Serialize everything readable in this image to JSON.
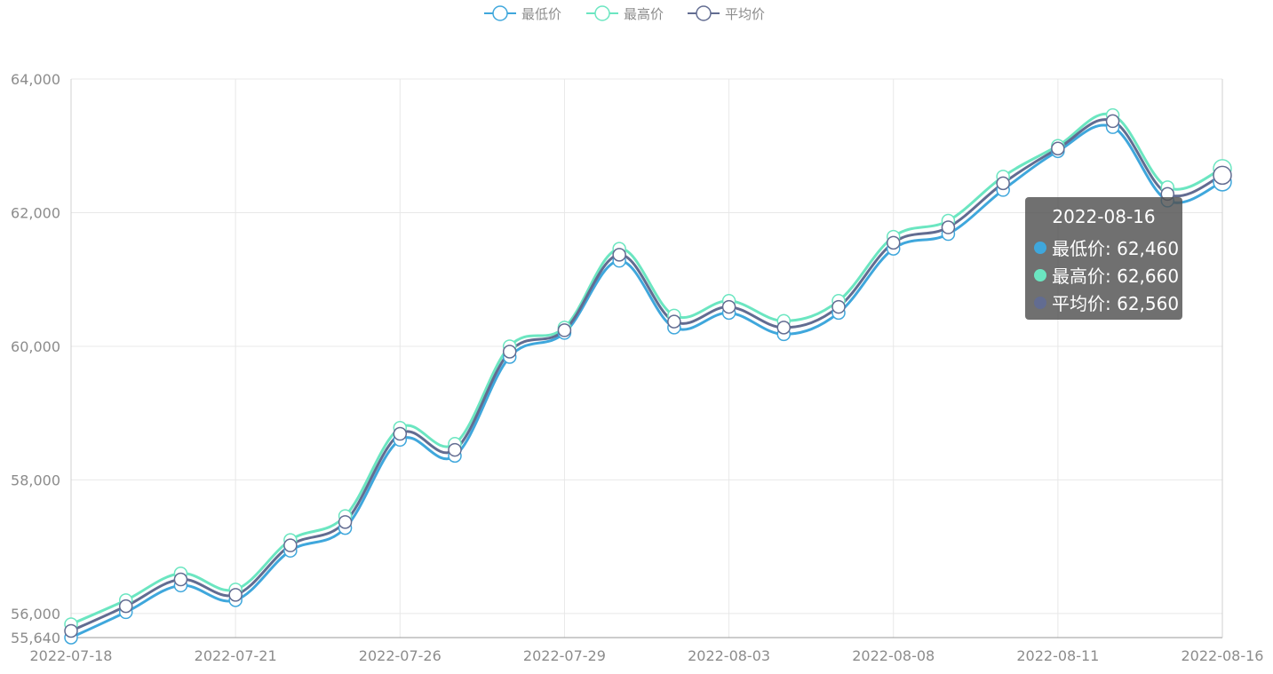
{
  "legend": [
    {
      "name": "最低价",
      "color": "#3fa7dc"
    },
    {
      "name": "最高价",
      "color": "#6be6c1"
    },
    {
      "name": "平均价",
      "color": "#626c91"
    }
  ],
  "tooltip": {
    "title": "2022-08-16",
    "rows": [
      {
        "label": "最低价: 62,460",
        "color": "#3fa7dc"
      },
      {
        "label": "最高价: 62,660",
        "color": "#6be6c1"
      },
      {
        "label": "平均价: 62,560",
        "color": "#626c91"
      }
    ]
  },
  "chart_data": {
    "type": "line",
    "smooth": true,
    "x": [
      "2022-07-18",
      "2022-07-19",
      "2022-07-20",
      "2022-07-21",
      "2022-07-22",
      "2022-07-25",
      "2022-07-26",
      "2022-07-27",
      "2022-07-28",
      "2022-07-29",
      "2022-08-01",
      "2022-08-02",
      "2022-08-03",
      "2022-08-04",
      "2022-08-05",
      "2022-08-08",
      "2022-08-09",
      "2022-08-10",
      "2022-08-11",
      "2022-08-12",
      "2022-08-15",
      "2022-08-16"
    ],
    "xticks": [
      "2022-07-18",
      "2022-07-21",
      "2022-07-26",
      "2022-07-29",
      "2022-08-03",
      "2022-08-08",
      "2022-08-11",
      "2022-08-16"
    ],
    "yticks": [
      "55,640",
      "56,000",
      "58,000",
      "60,000",
      "62,000",
      "64,000"
    ],
    "ylim": [
      55640,
      64000
    ],
    "grid": true,
    "legend_position": "top-center",
    "series": [
      {
        "name": "最低价",
        "color": "#3fa7dc",
        "values": [
          55640,
          56020,
          56420,
          56200,
          56940,
          57280,
          58600,
          58360,
          59840,
          60200,
          61280,
          60280,
          60500,
          60180,
          60500,
          61460,
          61680,
          62340,
          62920,
          63280,
          62180,
          62460
        ]
      },
      {
        "name": "最高价",
        "color": "#6be6c1",
        "values": [
          55840,
          56200,
          56600,
          56360,
          57100,
          57460,
          58780,
          58540,
          60000,
          60280,
          61460,
          60460,
          60680,
          60380,
          60680,
          61640,
          61880,
          62540,
          63000,
          63460,
          62380,
          62660
        ]
      },
      {
        "name": "平均价",
        "color": "#626c91",
        "values": [
          55740,
          56110,
          56510,
          56280,
          57020,
          57370,
          58690,
          58450,
          59920,
          60240,
          61370,
          60370,
          60590,
          60280,
          60590,
          61550,
          61780,
          62440,
          62960,
          63370,
          62280,
          62560
        ]
      }
    ]
  }
}
